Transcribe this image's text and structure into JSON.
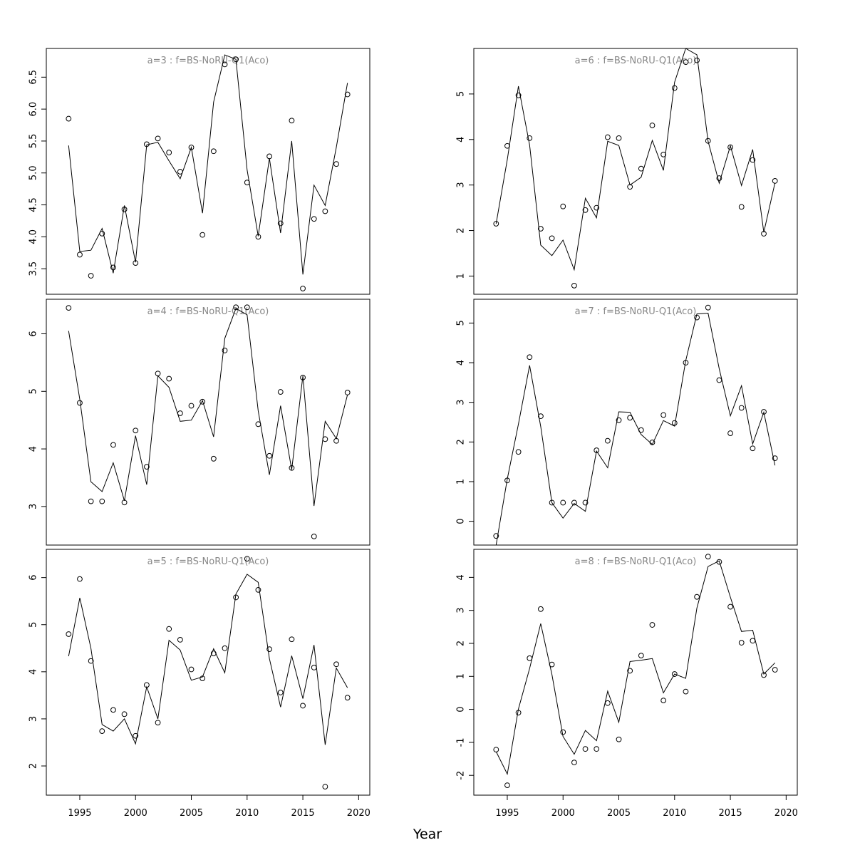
{
  "chart_data": [
    {
      "type": "line",
      "title": "a=3  :  f=BS-NoRU-Q1(Aco)",
      "xlim": [
        1992,
        2021
      ],
      "ylim": [
        3.1,
        6.95
      ],
      "yticks": [
        3.5,
        4.0,
        4.5,
        5.0,
        5.5,
        6.0,
        6.5
      ],
      "ytick_labels": [
        "3.5",
        "4.0",
        "4.5",
        "5.0",
        "5.5",
        "6.0",
        "6.5"
      ],
      "x": [
        1994,
        1995,
        1996,
        1997,
        1998,
        1999,
        2000,
        2001,
        2002,
        2003,
        2004,
        2005,
        2006,
        2007,
        2008,
        2009,
        2010,
        2011,
        2012,
        2013,
        2014,
        2015,
        2016,
        2017,
        2018,
        2019
      ],
      "series": [
        {
          "kind": "line",
          "values": [
            5.43,
            3.77,
            3.79,
            4.13,
            3.43,
            4.49,
            3.6,
            5.44,
            5.48,
            5.19,
            4.91,
            5.4,
            4.37,
            6.11,
            6.85,
            6.78,
            5.05,
            4.01,
            5.23,
            4.06,
            5.5,
            3.41,
            4.81,
            4.49,
            5.4,
            6.41
          ]
        },
        {
          "kind": "points",
          "values": [
            5.85,
            3.72,
            3.39,
            4.05,
            3.52,
            4.43,
            3.59,
            5.45,
            5.54,
            5.32,
            5.02,
            5.4,
            4.03,
            5.34,
            6.7,
            6.78,
            4.85,
            4.0,
            5.26,
            4.21,
            5.82,
            3.19,
            4.28,
            4.4,
            5.14,
            6.23
          ]
        }
      ]
    },
    {
      "type": "line",
      "title": "a=4  :  f=BS-NoRU-Q1(Aco)",
      "xlim": [
        1992,
        2021
      ],
      "ylim": [
        2.33,
        6.6
      ],
      "yticks": [
        3,
        4,
        5,
        6
      ],
      "ytick_labels": [
        "3",
        "4",
        "5",
        "6"
      ],
      "x": [
        1994,
        1995,
        1996,
        1997,
        1998,
        1999,
        2000,
        2001,
        2002,
        2003,
        2004,
        2005,
        2006,
        2007,
        2008,
        2009,
        2010,
        2011,
        2012,
        2013,
        2014,
        2015,
        2016,
        2017,
        2018,
        2019
      ],
      "series": [
        {
          "kind": "line",
          "values": [
            6.05,
            4.86,
            3.43,
            3.26,
            3.76,
            3.1,
            4.23,
            3.38,
            5.27,
            5.07,
            4.48,
            4.5,
            4.84,
            4.21,
            5.92,
            6.44,
            6.33,
            4.66,
            3.55,
            4.75,
            3.64,
            5.27,
            3.01,
            4.48,
            4.18,
            4.94
          ]
        },
        {
          "kind": "points",
          "values": [
            6.45,
            4.8,
            3.09,
            3.09,
            4.07,
            3.07,
            4.32,
            3.69,
            5.31,
            5.22,
            4.62,
            4.75,
            4.82,
            3.83,
            5.71,
            6.46,
            6.46,
            4.43,
            3.88,
            4.99,
            3.67,
            5.24,
            2.48,
            4.17,
            4.14,
            4.98
          ]
        }
      ]
    },
    {
      "type": "line",
      "title": "a=5  :  f=BS-NoRU-Q1(Aco)",
      "xlim": [
        1992,
        2021
      ],
      "ylim": [
        1.38,
        6.6
      ],
      "yticks": [
        2,
        3,
        4,
        5,
        6
      ],
      "ytick_labels": [
        "2",
        "3",
        "4",
        "5",
        "6"
      ],
      "x": [
        1994,
        1995,
        1996,
        1997,
        1998,
        1999,
        2000,
        2001,
        2002,
        2003,
        2004,
        2005,
        2006,
        2007,
        2008,
        2009,
        2010,
        2011,
        2012,
        2013,
        2014,
        2015,
        2016,
        2017,
        2018,
        2019
      ],
      "series": [
        {
          "kind": "line",
          "values": [
            4.33,
            5.57,
            4.5,
            2.88,
            2.74,
            3.0,
            2.47,
            3.68,
            3.0,
            4.67,
            4.46,
            3.82,
            3.89,
            4.49,
            3.98,
            5.65,
            6.07,
            5.9,
            4.28,
            3.25,
            4.34,
            3.43,
            4.57,
            2.45,
            4.08,
            3.66
          ]
        },
        {
          "kind": "points",
          "values": [
            4.8,
            5.97,
            4.23,
            2.74,
            3.19,
            3.1,
            2.64,
            3.72,
            2.92,
            4.91,
            4.68,
            4.05,
            3.86,
            4.39,
            4.5,
            5.58,
            6.4,
            5.74,
            4.48,
            3.56,
            4.69,
            3.28,
            4.09,
            1.56,
            4.16,
            3.45
          ]
        }
      ]
    },
    {
      "type": "line",
      "title": "a=6  :  f=BS-NoRU-Q1(Aco)",
      "xlim": [
        1992,
        2021
      ],
      "ylim": [
        0.6,
        6.0
      ],
      "yticks": [
        1,
        2,
        3,
        4,
        5
      ],
      "ytick_labels": [
        "1",
        "2",
        "3",
        "4",
        "5"
      ],
      "x": [
        1994,
        1995,
        1996,
        1997,
        1998,
        1999,
        2000,
        2001,
        2002,
        2003,
        2004,
        2005,
        2006,
        2007,
        2008,
        2009,
        2010,
        2011,
        2012,
        2013,
        2014,
        2015,
        2016,
        2017,
        2018,
        2019
      ],
      "series": [
        {
          "kind": "line",
          "values": [
            2.15,
            3.56,
            5.17,
            3.88,
            1.68,
            1.45,
            1.79,
            1.14,
            2.71,
            2.28,
            3.96,
            3.87,
            3.0,
            3.17,
            3.98,
            3.32,
            5.26,
            6.0,
            5.86,
            3.96,
            3.04,
            3.86,
            2.99,
            3.78,
            1.96,
            3.05
          ]
        },
        {
          "kind": "points",
          "values": [
            2.15,
            3.86,
            4.97,
            4.03,
            2.04,
            1.83,
            2.53,
            0.79,
            2.45,
            2.5,
            4.05,
            4.03,
            2.96,
            3.36,
            4.31,
            3.67,
            5.13,
            5.7,
            5.74,
            3.97,
            3.15,
            3.83,
            2.52,
            3.55,
            1.93,
            3.09
          ]
        }
      ]
    },
    {
      "type": "line",
      "title": "a=7  :  f=BS-NoRU-Q1(Aco)",
      "xlim": [
        1992,
        2021
      ],
      "ylim": [
        -0.6,
        5.6
      ],
      "yticks": [
        0,
        1,
        2,
        3,
        4,
        5
      ],
      "ytick_labels": [
        "0",
        "1",
        "2",
        "3",
        "4",
        "5"
      ],
      "x": [
        1994,
        1995,
        1996,
        1997,
        1998,
        1999,
        2000,
        2001,
        2002,
        2003,
        2004,
        2005,
        2006,
        2007,
        2008,
        2009,
        2010,
        2011,
        2012,
        2013,
        2014,
        2015,
        2016,
        2017,
        2018,
        2019
      ],
      "series": [
        {
          "kind": "line",
          "values": [
            -0.6,
            1.07,
            2.45,
            3.93,
            2.39,
            0.47,
            0.08,
            0.45,
            0.25,
            1.77,
            1.35,
            2.76,
            2.75,
            2.19,
            1.94,
            2.54,
            2.4,
            4.05,
            5.23,
            5.25,
            3.85,
            2.66,
            3.42,
            1.95,
            2.75,
            1.41
          ]
        },
        {
          "kind": "points",
          "values": [
            -0.37,
            1.03,
            1.75,
            4.14,
            2.65,
            0.47,
            0.47,
            0.47,
            0.47,
            1.79,
            2.03,
            2.55,
            2.61,
            2.3,
            1.99,
            2.68,
            2.48,
            4.0,
            5.14,
            5.39,
            3.56,
            2.22,
            2.86,
            1.84,
            2.76,
            1.59
          ]
        }
      ]
    },
    {
      "type": "line",
      "title": "a=8  :  f=BS-NoRU-Q1(Aco)",
      "xlim": [
        1992,
        2021
      ],
      "ylim": [
        -2.6,
        4.85
      ],
      "yticks": [
        -2,
        -1,
        0,
        1,
        2,
        3,
        4
      ],
      "ytick_labels": [
        "-2",
        "-1",
        "0",
        "1",
        "2",
        "3",
        "4"
      ],
      "x": [
        1994,
        1995,
        1996,
        1997,
        1998,
        1999,
        2000,
        2001,
        2002,
        2003,
        2004,
        2005,
        2006,
        2007,
        2008,
        2009,
        2010,
        2011,
        2012,
        2013,
        2014,
        2015,
        2016,
        2017,
        2018,
        2019
      ],
      "series": [
        {
          "kind": "line",
          "values": [
            -1.28,
            -1.96,
            0.01,
            1.24,
            2.6,
            1.06,
            -0.82,
            -1.36,
            -0.64,
            -0.95,
            0.55,
            -0.39,
            1.45,
            1.49,
            1.54,
            0.5,
            1.07,
            0.94,
            3.07,
            4.33,
            4.5,
            3.4,
            2.36,
            2.4,
            1.07,
            1.41
          ]
        },
        {
          "kind": "points",
          "values": [
            -1.22,
            -2.3,
            -0.1,
            1.55,
            3.04,
            1.36,
            -0.69,
            -1.61,
            -1.2,
            -1.2,
            0.19,
            -0.91,
            1.17,
            1.63,
            2.56,
            0.27,
            1.07,
            0.54,
            3.41,
            4.63,
            4.47,
            3.11,
            2.02,
            2.08,
            1.04,
            1.2
          ]
        }
      ]
    }
  ],
  "xaxis": {
    "label": "Year",
    "ticks": [
      1995,
      2000,
      2005,
      2010,
      2015,
      2020
    ],
    "tick_labels": [
      "1995",
      "2000",
      "2005",
      "2010",
      "2015",
      "2020"
    ]
  }
}
